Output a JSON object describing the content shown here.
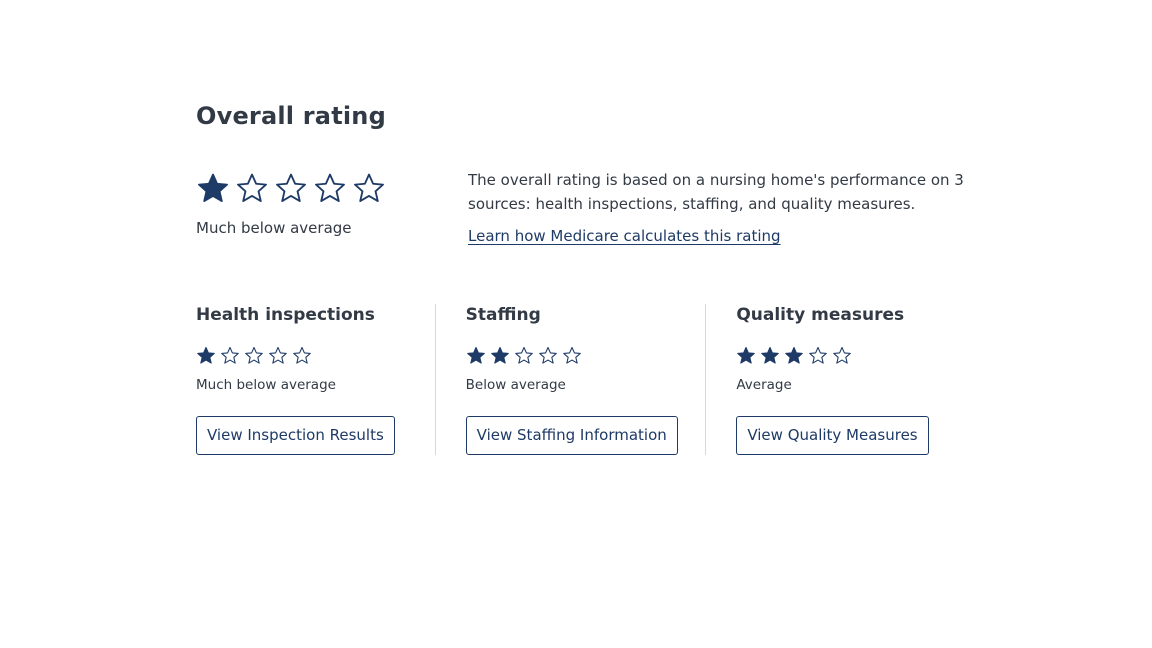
{
  "overall": {
    "title": "Overall rating",
    "rating": 1,
    "max_rating": 5,
    "rating_label": "Much below average",
    "description": "The overall rating is based on a nursing home's performance on 3 sources: health inspections, staffing, and quality measures.",
    "link_text": "Learn how Medicare calculates this rating"
  },
  "categories": [
    {
      "title": "Health inspections",
      "rating": 1,
      "max_rating": 5,
      "rating_label": "Much below average",
      "button_label": "View Inspection Results"
    },
    {
      "title": "Staffing",
      "rating": 2,
      "max_rating": 5,
      "rating_label": "Below average",
      "button_label": "View Staffing Information"
    },
    {
      "title": "Quality measures",
      "rating": 3,
      "max_rating": 5,
      "rating_label": "Average",
      "button_label": "View Quality Measures"
    }
  ],
  "colors": {
    "star_fill": "#1e3a66",
    "star_outline": "#1e3a66",
    "text": "#323a45",
    "link": "#1e3a66",
    "divider": "#d6d7d9"
  },
  "icons": {
    "filled_star": "star-filled-icon",
    "empty_star": "star-outline-icon"
  }
}
